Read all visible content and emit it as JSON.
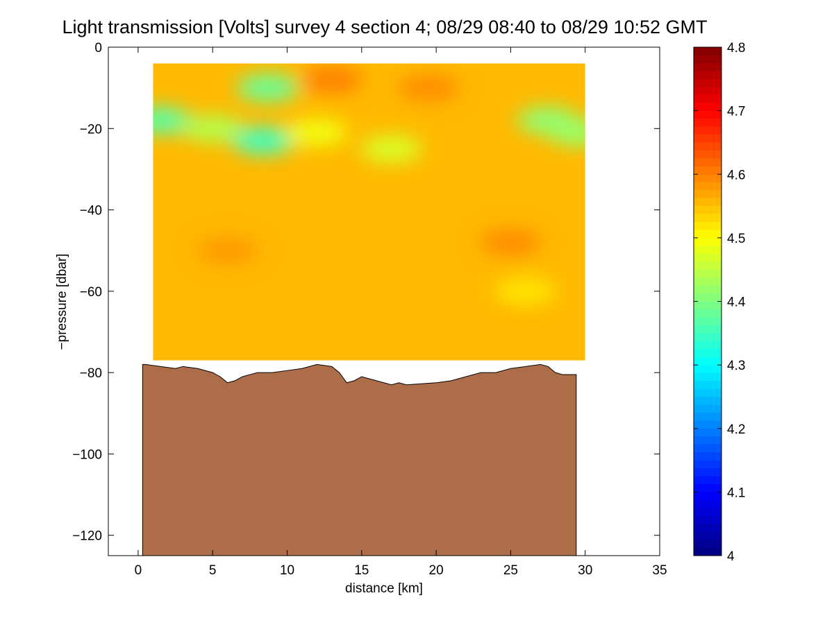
{
  "chart_data": {
    "type": "heatmap",
    "title": "Light transmission [Volts] survey 4 section 4; 08/29 08:40 to 08/29 10:52 GMT",
    "xlabel": "distance [km]",
    "ylabel": "−pressure [dbar]",
    "xlim": [
      -2,
      35
    ],
    "ylim": [
      -125,
      0
    ],
    "x_ticks": [
      "0",
      "5",
      "10",
      "15",
      "20",
      "25",
      "30",
      "35"
    ],
    "y_ticks": [
      "0",
      "−20",
      "−40",
      "−60",
      "−80",
      "−100",
      "−120"
    ],
    "colorbar": {
      "range": [
        4,
        4.8
      ],
      "ticks": [
        "4",
        "4.1",
        "4.2",
        "4.3",
        "4.4",
        "4.5",
        "4.6",
        "4.7",
        "4.8"
      ],
      "colormap": "jet"
    },
    "field": {
      "x_range": [
        1,
        30
      ],
      "top": -4,
      "bottom_min": -77,
      "background_value": 4.555,
      "features": [
        {
          "x": 1.5,
          "y": -18,
          "value": 4.37
        },
        {
          "x": 5,
          "y": -20,
          "value": 4.44
        },
        {
          "x": 8.4,
          "y": -23,
          "value": 4.35
        },
        {
          "x": 8.7,
          "y": -10,
          "value": 4.38
        },
        {
          "x": 12,
          "y": -21,
          "value": 4.49
        },
        {
          "x": 17,
          "y": -25,
          "value": 4.47
        },
        {
          "x": 27.5,
          "y": -18,
          "value": 4.41
        },
        {
          "x": 29.5,
          "y": -21,
          "value": 4.42
        },
        {
          "x": 13,
          "y": -8,
          "value": 4.6
        },
        {
          "x": 19.5,
          "y": -10,
          "value": 4.59
        },
        {
          "x": 25,
          "y": -48,
          "value": 4.59
        },
        {
          "x": 6,
          "y": -50,
          "value": 4.58
        },
        {
          "x": 26,
          "y": -60,
          "value": 4.52
        }
      ]
    },
    "bathymetry": {
      "color": "#ad6d48",
      "x": [
        0.3,
        0.5,
        2.5,
        3,
        4,
        5,
        5.5,
        6,
        6.5,
        7,
        7.5,
        8,
        9,
        10,
        11,
        12,
        13,
        13.5,
        14,
        14.5,
        15,
        16,
        17,
        17.5,
        18,
        20,
        21,
        22,
        23,
        24,
        25,
        26,
        27,
        27.5,
        28,
        28.5,
        29.4
      ],
      "y": [
        -78,
        -78,
        -79,
        -78.5,
        -79,
        -80,
        -81,
        -82.5,
        -82,
        -81,
        -80.5,
        -80,
        -80,
        -79.5,
        -79,
        -78,
        -78.5,
        -80,
        -82.5,
        -82,
        -81,
        -82,
        -83,
        -82.5,
        -83,
        -82.5,
        -82,
        -81,
        -80,
        -80,
        -79,
        -78.5,
        -78,
        -78.5,
        -80,
        -80.5,
        -80.5
      ]
    }
  }
}
